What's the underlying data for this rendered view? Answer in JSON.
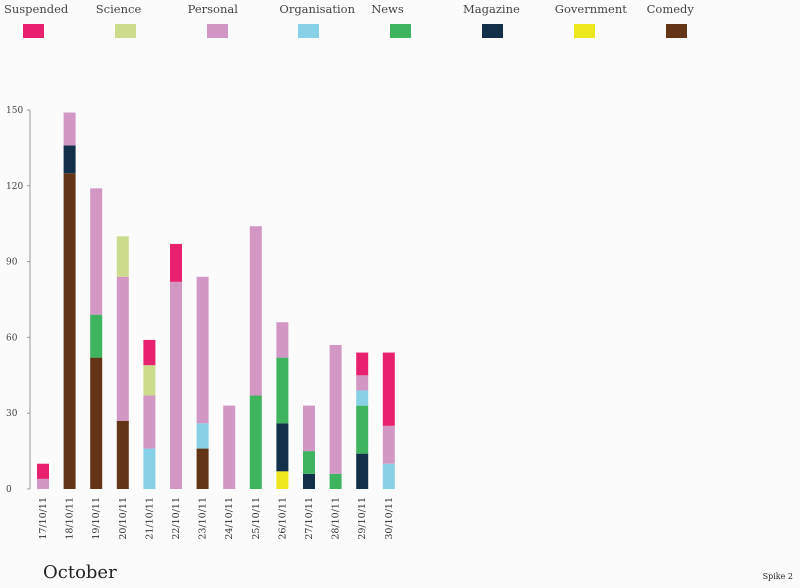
{
  "legend": [
    {
      "label": "Suspended",
      "color": "#e8216e"
    },
    {
      "label": "Science",
      "color": "#cbdd8c"
    },
    {
      "label": "Personal",
      "color": "#d397c5"
    },
    {
      "label": "Organisation",
      "color": "#86d0e8"
    },
    {
      "label": "News",
      "color": "#3fb45f"
    },
    {
      "label": "Magazine",
      "color": "#13304a"
    },
    {
      "label": "Government",
      "color": "#ede81e"
    },
    {
      "label": "Comedy",
      "color": "#633416"
    }
  ],
  "chart_data": {
    "type": "bar",
    "stacked": true,
    "categories": [
      "17/10/11",
      "18/10/11",
      "19/10/11",
      "20/10/11",
      "21/10/11",
      "22/10/11",
      "23/10/11",
      "24/10/11",
      "25/10/11",
      "26/10/11",
      "27/10/11",
      "28/10/11",
      "29/10/11",
      "30/10/11"
    ],
    "ylim": [
      0,
      150
    ],
    "yticks": [
      0,
      30,
      60,
      90,
      120,
      150
    ],
    "series": [
      {
        "name": "Comedy",
        "color": "#633416",
        "values": [
          0,
          125,
          52,
          27,
          0,
          0,
          16,
          0,
          0,
          0,
          0,
          0,
          0,
          0
        ]
      },
      {
        "name": "Government",
        "color": "#ede81e",
        "values": [
          0,
          0,
          0,
          0,
          0,
          0,
          0,
          0,
          0,
          7,
          0,
          0,
          0,
          0
        ]
      },
      {
        "name": "Magazine",
        "color": "#13304a",
        "values": [
          0,
          11,
          0,
          0,
          0,
          0,
          0,
          0,
          0,
          19,
          6,
          0,
          14,
          0
        ]
      },
      {
        "name": "News",
        "color": "#3fb45f",
        "values": [
          0,
          0,
          17,
          0,
          0,
          0,
          0,
          0,
          37,
          26,
          9,
          6,
          19,
          0
        ]
      },
      {
        "name": "Organisation",
        "color": "#86d0e8",
        "values": [
          0,
          0,
          0,
          0,
          16,
          0,
          10,
          0,
          0,
          0,
          0,
          0,
          6,
          10
        ]
      },
      {
        "name": "Personal",
        "color": "#d397c5",
        "values": [
          4,
          13,
          50,
          57,
          21,
          82,
          58,
          33,
          67,
          14,
          18,
          51,
          6,
          15
        ]
      },
      {
        "name": "Science",
        "color": "#cbdd8c",
        "values": [
          0,
          0,
          0,
          16,
          12,
          0,
          0,
          0,
          0,
          0,
          0,
          0,
          0,
          0
        ]
      },
      {
        "name": "Suspended",
        "color": "#e8216e",
        "values": [
          6,
          0,
          0,
          0,
          10,
          15,
          0,
          0,
          0,
          0,
          0,
          0,
          9,
          29
        ]
      }
    ],
    "xlabel": "October",
    "grid": false
  },
  "footer": {
    "note": "Spike 2"
  }
}
